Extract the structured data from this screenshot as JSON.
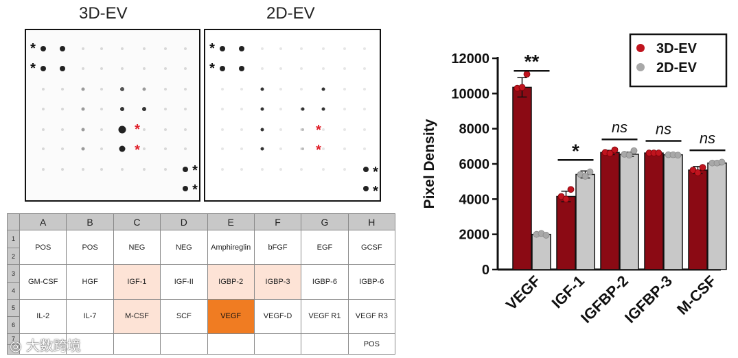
{
  "panels": {
    "left_title": "3D-EV",
    "right_title": "2D-EV"
  },
  "membrane_marks": {
    "black_star": "*",
    "red_star": "*",
    "colors": {
      "black": "#111111",
      "red": "#e0202a"
    }
  },
  "array_key": {
    "columns": [
      "A",
      "B",
      "C",
      "D",
      "E",
      "F",
      "G",
      "H"
    ],
    "rows": [
      {
        "numbers": [
          "1",
          "2"
        ],
        "cells": [
          "POS",
          "POS",
          "NEG",
          "NEG",
          "Amphireglin",
          "bFGF",
          "EGF",
          "GCSF"
        ]
      },
      {
        "numbers": [
          "3",
          "4"
        ],
        "cells": [
          "GM-CSF",
          "HGF",
          "IGF-1",
          "IGF-II",
          "IGBP-2",
          "IGBP-3",
          "IGBP-6",
          "IGBP-6"
        ]
      },
      {
        "numbers": [
          "5",
          "6"
        ],
        "cells": [
          "IL-2",
          "IL-7",
          "M-CSF",
          "SCF",
          "VEGF",
          "VEGF-D",
          "VEGF R1",
          "VEGF R3"
        ]
      },
      {
        "numbers": [
          "7",
          ""
        ],
        "cells": [
          "",
          "",
          "",
          "",
          "",
          "",
          "",
          "POS"
        ]
      }
    ],
    "highlight_colors": {
      "light": "#fde3d6",
      "strong": "#f07c22"
    }
  },
  "watermark": "大数跨境",
  "chart_data": {
    "type": "bar",
    "title": "",
    "xlabel": "",
    "ylabel": "Pixel Density",
    "ylim": [
      0,
      12000
    ],
    "yticks": [
      "0",
      "2000",
      "4000",
      "6000",
      "8000",
      "10000",
      "12000"
    ],
    "categories": [
      "VEGF",
      "IGF-1",
      "IGFBP-2",
      "IGFBP-3",
      "M-CSF"
    ],
    "series": [
      {
        "name": "3D-EV",
        "color": "#8b0a14",
        "values": [
          10350,
          4150,
          6650,
          6620,
          5650
        ],
        "errors": [
          550,
          300,
          120,
          60,
          200
        ],
        "points": [
          [
            10300,
            10350,
            11100
          ],
          [
            4150,
            4000,
            4550
          ],
          [
            6650,
            6600,
            6800
          ],
          [
            6620,
            6620,
            6620
          ],
          [
            5650,
            5500,
            5800
          ]
        ]
      },
      {
        "name": "2D-EV",
        "color": "#c8c8c8",
        "values": [
          2000,
          5400,
          6550,
          6520,
          6050
        ],
        "errors": [
          80,
          200,
          120,
          80,
          100
        ],
        "points": [
          [
            2000,
            2050,
            1950
          ],
          [
            5400,
            5300,
            5550
          ],
          [
            6550,
            6500,
            6750
          ],
          [
            6520,
            6520,
            6500
          ],
          [
            6050,
            6050,
            6100
          ]
        ]
      }
    ],
    "significance": [
      "**",
      "*",
      "ns",
      "ns",
      "ns"
    ],
    "legend": {
      "position": "top-right",
      "entries": [
        "3D-EV",
        "2D-EV"
      ]
    }
  }
}
